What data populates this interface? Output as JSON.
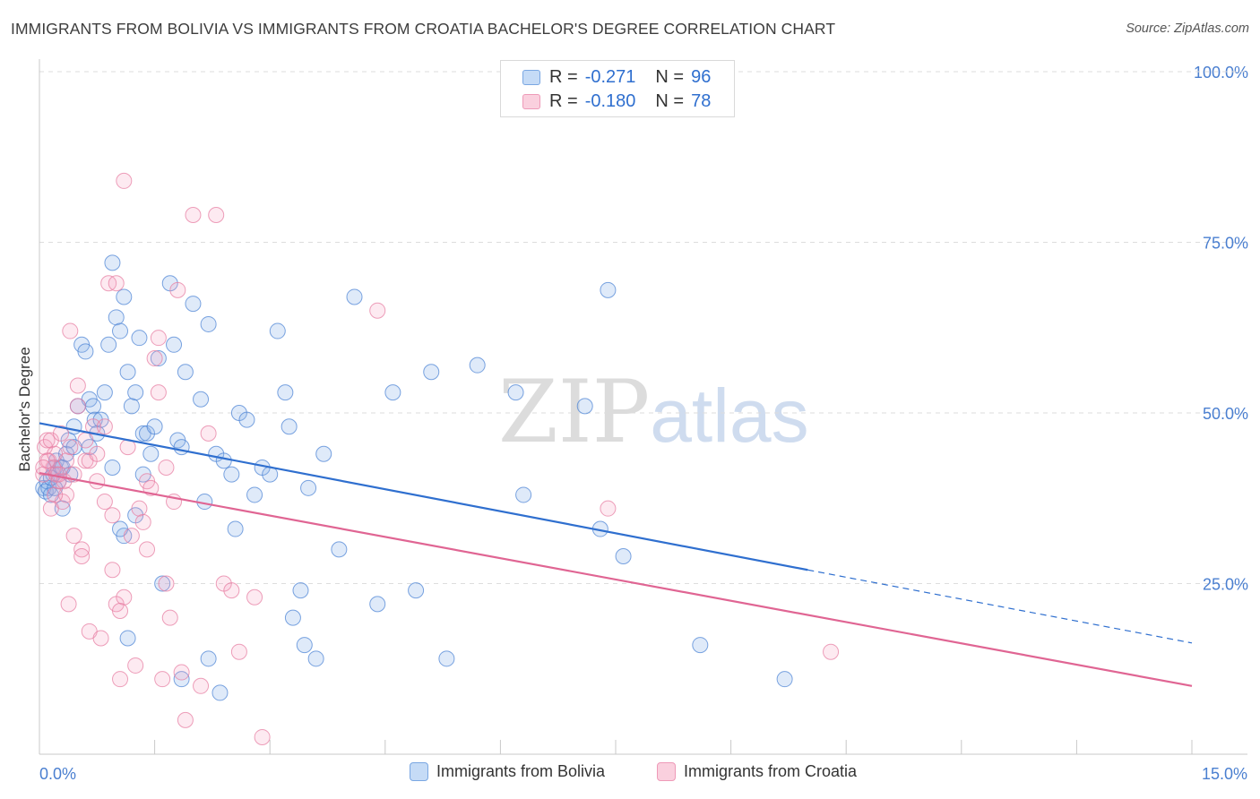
{
  "header": {
    "title": "IMMIGRANTS FROM BOLIVIA VS IMMIGRANTS FROM CROATIA BACHELOR'S DEGREE CORRELATION CHART",
    "source": "Source: ZipAtlas.com"
  },
  "watermark": {
    "zip": "ZIP",
    "atlas": "atlas"
  },
  "legend_top": {
    "rows": [
      {
        "r_label": "R =",
        "r_value": "-0.271",
        "n_label": "N =",
        "n_value": "96",
        "color": "#a9c8ef"
      },
      {
        "r_label": "R =",
        "r_value": "-0.180",
        "n_label": "N =",
        "n_value": "78",
        "color": "#f5b8cc"
      }
    ]
  },
  "legend_bottom": {
    "items": [
      {
        "label": "Immigrants from Bolivia",
        "color": "#a9c8ef"
      },
      {
        "label": "Immigrants from Croatia",
        "color": "#f5b8cc"
      }
    ]
  },
  "colors": {
    "bolivia_fill": "rgba(140,180,235,0.28)",
    "bolivia_stroke": "#4f86d6",
    "bolivia_line": "#2f6fcf",
    "croatia_fill": "rgba(245,160,190,0.22)",
    "croatia_stroke": "#e77fa3",
    "croatia_line": "#e06593",
    "axis_text": "#4a7fd0",
    "grid": "#dddddd"
  },
  "chart_data": {
    "type": "scatter",
    "title": "IMMIGRANTS FROM BOLIVIA VS IMMIGRANTS FROM CROATIA BACHELOR'S DEGREE CORRELATION CHART",
    "xlabel": "",
    "ylabel": "Bachelor's Degree",
    "xlim": [
      0,
      15
    ],
    "ylim": [
      0,
      100
    ],
    "x_ticks": [
      "0.0%",
      "15.0%"
    ],
    "y_ticks": [
      "25.0%",
      "50.0%",
      "75.0%",
      "100.0%"
    ],
    "y_tick_values": [
      25,
      50,
      75,
      100
    ],
    "grid": "horizontal dashed",
    "legend": "bottom",
    "series": [
      {
        "name": "Immigrants from Bolivia",
        "r": -0.271,
        "n": 96,
        "trend": {
          "x0": 0,
          "y0": 48.5,
          "x1": 10.0,
          "y1": 27.0,
          "dashed_to_x": 15.0,
          "dashed_to_y": 16.3
        },
        "points": [
          [
            0.05,
            39
          ],
          [
            0.08,
            38.5
          ],
          [
            0.1,
            40
          ],
          [
            0.12,
            39
          ],
          [
            0.15,
            38
          ],
          [
            0.18,
            41
          ],
          [
            0.2,
            42
          ],
          [
            0.22,
            43
          ],
          [
            0.25,
            40
          ],
          [
            0.28,
            42
          ],
          [
            0.3,
            36
          ],
          [
            0.35,
            44
          ],
          [
            0.38,
            46
          ],
          [
            0.4,
            41
          ],
          [
            0.45,
            45
          ],
          [
            0.5,
            51
          ],
          [
            0.55,
            60
          ],
          [
            0.6,
            59
          ],
          [
            0.65,
            52
          ],
          [
            0.7,
            51
          ],
          [
            0.72,
            49
          ],
          [
            0.75,
            47
          ],
          [
            0.8,
            49
          ],
          [
            0.85,
            53
          ],
          [
            0.9,
            60
          ],
          [
            0.95,
            72
          ],
          [
            1.0,
            64
          ],
          [
            1.05,
            62
          ],
          [
            1.1,
            67
          ],
          [
            1.15,
            56
          ],
          [
            1.2,
            51
          ],
          [
            1.25,
            53
          ],
          [
            1.3,
            61
          ],
          [
            1.35,
            47
          ],
          [
            1.4,
            47
          ],
          [
            1.45,
            44
          ],
          [
            1.5,
            48
          ],
          [
            1.55,
            58
          ],
          [
            1.6,
            25
          ],
          [
            1.7,
            69
          ],
          [
            1.75,
            60
          ],
          [
            1.8,
            46
          ],
          [
            1.85,
            45
          ],
          [
            1.9,
            56
          ],
          [
            2.0,
            66
          ],
          [
            2.1,
            52
          ],
          [
            2.2,
            63
          ],
          [
            2.3,
            44
          ],
          [
            2.4,
            43
          ],
          [
            2.5,
            41
          ],
          [
            2.6,
            50
          ],
          [
            2.7,
            49
          ],
          [
            2.8,
            38
          ],
          [
            2.9,
            42
          ],
          [
            3.0,
            41
          ],
          [
            3.1,
            62
          ],
          [
            3.2,
            53
          ],
          [
            3.25,
            48
          ],
          [
            3.3,
            20
          ],
          [
            3.4,
            24
          ],
          [
            3.5,
            39
          ],
          [
            3.6,
            14
          ],
          [
            3.7,
            44
          ],
          [
            3.9,
            30
          ],
          [
            4.1,
            67
          ],
          [
            4.4,
            22
          ],
          [
            4.6,
            53
          ],
          [
            4.9,
            24
          ],
          [
            5.1,
            56
          ],
          [
            5.7,
            57
          ],
          [
            6.2,
            53
          ],
          [
            6.3,
            38
          ],
          [
            7.1,
            51
          ],
          [
            7.3,
            33
          ],
          [
            7.4,
            68
          ],
          [
            7.6,
            29
          ],
          [
            8.6,
            16
          ],
          [
            9.7,
            11
          ],
          [
            1.15,
            17
          ],
          [
            1.1,
            32
          ],
          [
            1.05,
            33
          ],
          [
            0.95,
            42
          ],
          [
            1.35,
            41
          ],
          [
            1.85,
            11
          ],
          [
            2.15,
            37
          ],
          [
            2.2,
            14
          ],
          [
            2.35,
            9
          ],
          [
            2.55,
            33
          ],
          [
            3.45,
            16
          ],
          [
            5.3,
            14
          ],
          [
            0.65,
            45
          ],
          [
            0.3,
            42
          ],
          [
            0.45,
            48
          ],
          [
            1.25,
            35
          ],
          [
            0.2,
            39
          ],
          [
            0.15,
            40.5
          ]
        ]
      },
      {
        "name": "Immigrants from Croatia",
        "r": -0.18,
        "n": 78,
        "trend": {
          "x0": 0,
          "y0": 41.2,
          "x1": 15.0,
          "y1": 10.0
        },
        "points": [
          [
            0.05,
            41
          ],
          [
            0.07,
            45
          ],
          [
            0.1,
            46
          ],
          [
            0.12,
            43
          ],
          [
            0.15,
            46
          ],
          [
            0.18,
            42
          ],
          [
            0.2,
            44
          ],
          [
            0.22,
            41
          ],
          [
            0.25,
            40
          ],
          [
            0.28,
            47
          ],
          [
            0.3,
            37
          ],
          [
            0.32,
            40
          ],
          [
            0.35,
            38
          ],
          [
            0.38,
            22
          ],
          [
            0.4,
            62
          ],
          [
            0.45,
            32
          ],
          [
            0.5,
            54
          ],
          [
            0.55,
            30
          ],
          [
            0.6,
            46
          ],
          [
            0.65,
            18
          ],
          [
            0.7,
            48
          ],
          [
            0.75,
            40
          ],
          [
            0.8,
            17
          ],
          [
            0.85,
            37
          ],
          [
            0.9,
            69
          ],
          [
            0.95,
            27
          ],
          [
            1.0,
            22
          ],
          [
            1.05,
            11
          ],
          [
            1.1,
            23
          ],
          [
            1.15,
            45
          ],
          [
            1.2,
            32
          ],
          [
            1.25,
            13
          ],
          [
            1.3,
            36
          ],
          [
            1.35,
            34
          ],
          [
            1.4,
            40
          ],
          [
            1.45,
            39
          ],
          [
            1.5,
            58
          ],
          [
            1.55,
            61
          ],
          [
            1.6,
            11
          ],
          [
            1.65,
            42
          ],
          [
            1.7,
            20
          ],
          [
            1.75,
            37
          ],
          [
            1.8,
            68
          ],
          [
            1.85,
            12
          ],
          [
            1.9,
            5
          ],
          [
            2.0,
            79
          ],
          [
            2.1,
            10
          ],
          [
            2.2,
            47
          ],
          [
            2.3,
            79
          ],
          [
            2.4,
            25
          ],
          [
            2.5,
            24
          ],
          [
            2.6,
            15
          ],
          [
            2.8,
            23
          ],
          [
            2.9,
            2.5
          ],
          [
            1.1,
            84
          ],
          [
            1.0,
            69
          ],
          [
            4.4,
            65
          ],
          [
            7.4,
            36
          ],
          [
            10.3,
            15
          ],
          [
            0.5,
            51
          ],
          [
            0.6,
            43
          ],
          [
            0.35,
            43
          ],
          [
            0.45,
            41
          ],
          [
            0.25,
            41
          ],
          [
            0.1,
            43
          ],
          [
            0.05,
            42
          ],
          [
            0.15,
            36
          ],
          [
            0.4,
            45
          ],
          [
            0.55,
            29
          ],
          [
            0.65,
            43
          ],
          [
            0.75,
            44
          ],
          [
            0.85,
            48
          ],
          [
            0.95,
            35
          ],
          [
            1.05,
            21
          ],
          [
            1.4,
            30
          ],
          [
            1.55,
            53
          ],
          [
            1.65,
            25
          ],
          [
            0.2,
            38
          ]
        ]
      }
    ]
  }
}
